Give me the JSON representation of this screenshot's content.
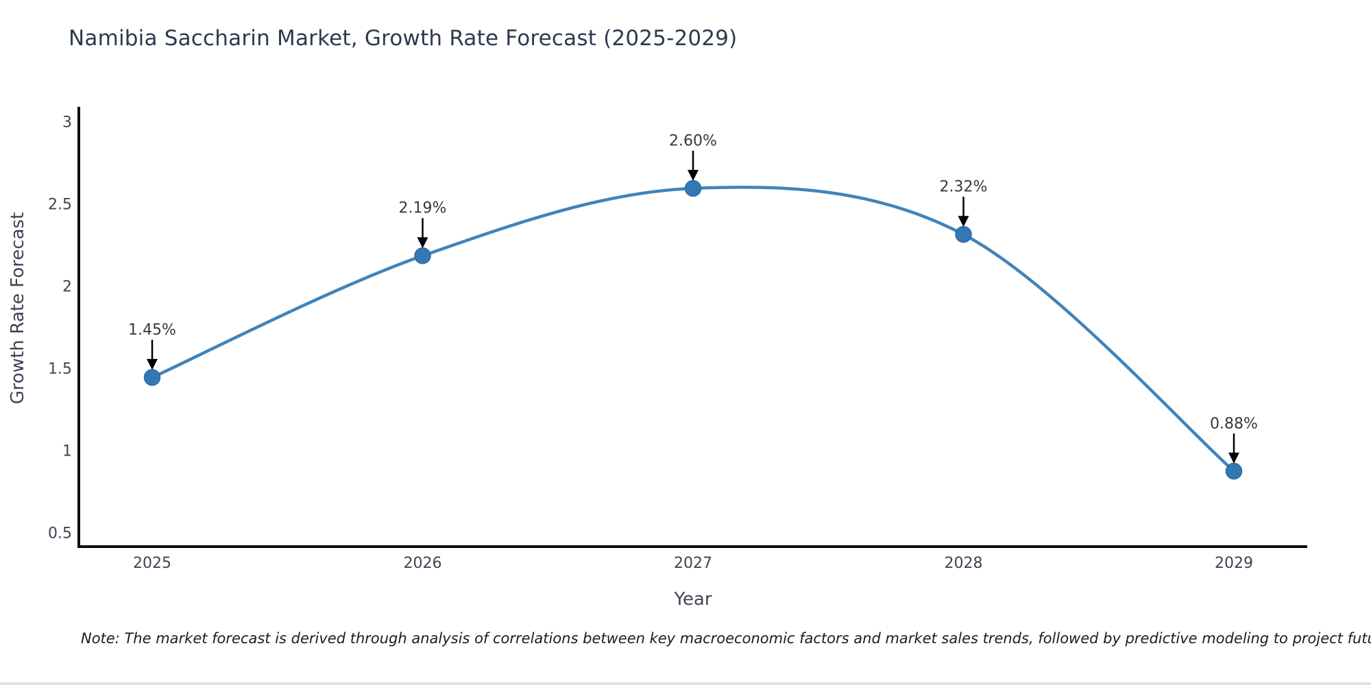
{
  "title": "Namibia Saccharin Market, Growth Rate Forecast (2025-2029)",
  "note": "Note: The market forecast is derived through analysis of correlations between key macroeconomic factors and market sales trends, followed by predictive modeling to project future sales",
  "chart_data": {
    "type": "line",
    "x": [
      2025,
      2026,
      2027,
      2028,
      2029
    ],
    "series": [
      {
        "name": "Growth Rate Forecast",
        "values": [
          1.45,
          2.19,
          2.6,
          2.32,
          0.88
        ]
      }
    ],
    "point_labels": [
      "1.45%",
      "2.19%",
      "2.60%",
      "2.32%",
      "0.88%"
    ],
    "title": "Namibia Saccharin Market, Growth Rate Forecast (2025-2029)",
    "xlabel": "Year",
    "ylabel": "Growth Rate Forecast",
    "xticks": [
      "2025",
      "2026",
      "2027",
      "2028",
      "2029"
    ],
    "yticks": [
      0.5,
      1,
      1.5,
      2,
      2.5,
      3
    ],
    "ylim": [
      0.42,
      3.08
    ],
    "xlim": [
      2024.73,
      2029.27
    ],
    "grid": false,
    "legend_position": "none",
    "curve_style": "smooth-spline",
    "annotation_style": "black-down-arrow",
    "colors": {
      "line": "#4183b8",
      "marker_fill": "#3377b5",
      "marker_edge": "#2c6ba6",
      "axis_spine": "#0d0d0d",
      "arrow": "#000000",
      "title_text": "#2e3950",
      "axis_text": "#3d4454",
      "annotation_text": "#35383e",
      "background": "#ffffff"
    }
  }
}
